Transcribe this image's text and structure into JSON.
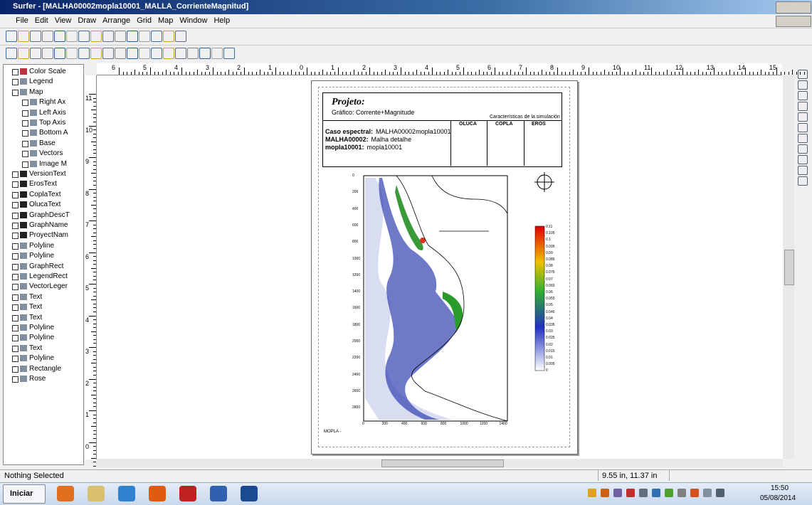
{
  "window": {
    "title": "Surfer - [MALHA00002mopla10001_MALLA_CorrienteMagnitud]"
  },
  "menu": [
    "File",
    "Edit",
    "View",
    "Draw",
    "Arrange",
    "Grid",
    "Map",
    "Window",
    "Help"
  ],
  "object_manager": [
    "Color Scale",
    "Legend",
    "Map",
    "Right Ax",
    "Left Axis",
    "Top Axis",
    "Bottom A",
    "Base",
    "Vectors",
    "Image M",
    "VersionText",
    "ErosText",
    "CoplaText",
    "OlucaText",
    "GraphDescT",
    "GraphName",
    "ProyectNam",
    "Polyline",
    "Polyline",
    "GraphRect",
    "LegendRect",
    "VectorLeger",
    "Text",
    "Text",
    "Text",
    "Polyline",
    "Polyline",
    "Text",
    "Polyline",
    "Rectangle",
    "Rose"
  ],
  "rulers": {
    "horizontal": [
      6,
      5,
      4,
      3,
      2,
      1,
      0,
      1,
      2,
      3,
      4,
      5,
      6,
      7,
      8,
      9,
      10,
      11,
      12,
      13,
      14,
      15
    ],
    "vertical": [
      11,
      10,
      9,
      8,
      7,
      6,
      5,
      4,
      3,
      2,
      1,
      0
    ]
  },
  "page": {
    "heading": "Projeto:",
    "graph": "Gráfico: Corrente+Magnitude",
    "characteristics": "Características de la simulación",
    "columns": [
      "OLUCA",
      "COPLA",
      "EROS"
    ],
    "case_lines": [
      [
        "Caso espectral:",
        "MALHA00002mopla10001"
      ],
      [
        "MALHA00002:",
        "Malha detalhe"
      ],
      [
        "mopla10001:",
        "mopla10001"
      ]
    ],
    "map_y_labels": [
      0,
      200,
      400,
      600,
      800,
      1000,
      1200,
      1400,
      1600,
      1800,
      2000,
      2200,
      2400,
      2600,
      2800
    ],
    "map_x_labels": [
      0,
      200,
      400,
      600,
      800,
      1000,
      1200,
      1400
    ],
    "color_scale": [
      0.11,
      0.105,
      0.1,
      0.095,
      0.09,
      0.085,
      0.08,
      0.075,
      0.07,
      0.065,
      0.06,
      0.055,
      0.05,
      0.045,
      0.04,
      0.035,
      0.03,
      0.025,
      0.02,
      0.015,
      0.01,
      0.005,
      0
    ],
    "footer": "MOPLA -"
  },
  "status": {
    "left": "Nothing Selected",
    "position": "9.55 in, 11.37 in"
  },
  "taskbar": {
    "start": "Iniciar",
    "time": "15:50",
    "date": "05/08/2014"
  }
}
